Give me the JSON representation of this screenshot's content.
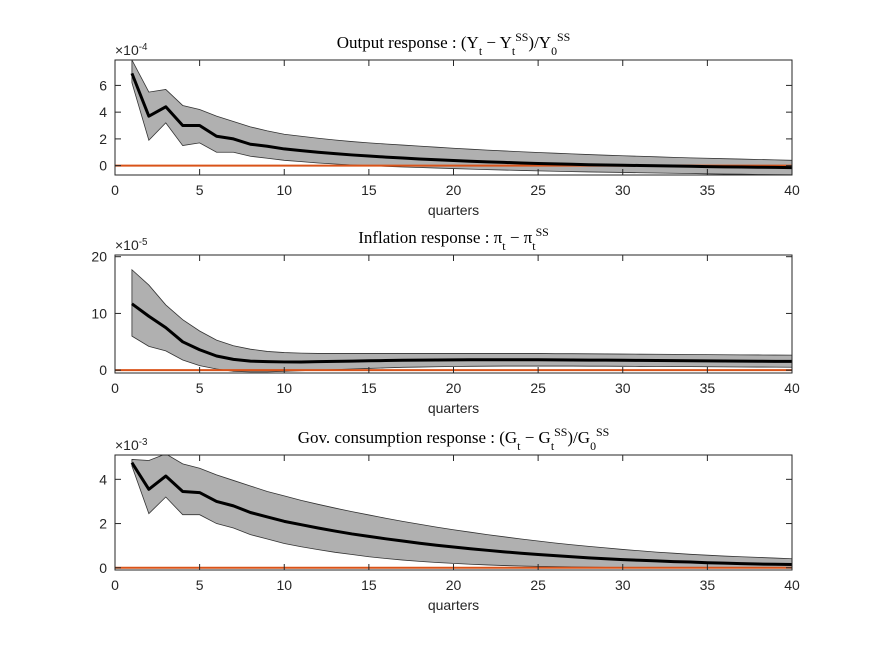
{
  "chart_data": [
    {
      "type": "line",
      "title": "Output response : (Y_{t} − Y_{t}^{SS})/Y_{0}^{SS}",
      "exponent_label": "×10^{-4}",
      "xlabel": "quarters",
      "x": [
        1,
        2,
        3,
        4,
        5,
        6,
        7,
        8,
        9,
        10,
        11,
        12,
        13,
        14,
        15,
        16,
        17,
        18,
        19,
        20,
        21,
        22,
        23,
        24,
        25,
        26,
        27,
        28,
        29,
        30,
        31,
        32,
        33,
        34,
        35,
        36,
        37,
        38,
        39,
        40
      ],
      "series": [
        {
          "color": "#000000",
          "values": [
            6.9,
            3.7,
            4.4,
            3.0,
            3.0,
            2.2,
            2.0,
            1.6,
            1.45,
            1.25,
            1.12,
            1.0,
            0.9,
            0.8,
            0.72,
            0.64,
            0.57,
            0.5,
            0.44,
            0.38,
            0.33,
            0.28,
            0.24,
            0.2,
            0.16,
            0.13,
            0.1,
            0.07,
            0.05,
            0.03,
            0.01,
            -0.01,
            -0.03,
            -0.05,
            -0.07,
            -0.09,
            -0.1,
            -0.12,
            -0.13,
            -0.15
          ]
        }
      ],
      "band": {
        "color": "#b0b0b0",
        "upper": [
          7.9,
          5.5,
          5.7,
          4.5,
          4.2,
          3.7,
          3.3,
          2.9,
          2.6,
          2.35,
          2.2,
          2.05,
          1.92,
          1.8,
          1.7,
          1.62,
          1.54,
          1.46,
          1.38,
          1.3,
          1.23,
          1.16,
          1.1,
          1.04,
          0.98,
          0.93,
          0.88,
          0.83,
          0.78,
          0.74,
          0.7,
          0.66,
          0.62,
          0.58,
          0.55,
          0.52,
          0.49,
          0.46,
          0.43,
          0.4
        ],
        "lower": [
          6.2,
          1.9,
          3.2,
          1.5,
          1.7,
          1.0,
          1.0,
          0.7,
          0.55,
          0.4,
          0.3,
          0.2,
          0.12,
          0.05,
          0,
          -0.05,
          -0.1,
          -0.14,
          -0.18,
          -0.22,
          -0.26,
          -0.3,
          -0.33,
          -0.36,
          -0.39,
          -0.42,
          -0.45,
          -0.47,
          -0.49,
          -0.51,
          -0.53,
          -0.55,
          -0.57,
          -0.59,
          -0.61,
          -0.63,
          -0.64,
          -0.66,
          -0.67,
          -0.68
        ]
      },
      "hline": {
        "value": 0,
        "color": "#d95319"
      },
      "xlim": [
        0,
        40
      ],
      "xticks": [
        0,
        5,
        10,
        15,
        20,
        25,
        30,
        35,
        40
      ],
      "ylim": [
        -0.7,
        7.9
      ],
      "yticks": [
        0,
        2,
        4,
        6
      ]
    },
    {
      "type": "line",
      "title": "Inflation response : π_{t} − π_{t}^{SS}",
      "exponent_label": "×10^{-5}",
      "xlabel": "quarters",
      "x": [
        1,
        2,
        3,
        4,
        5,
        6,
        7,
        8,
        9,
        10,
        11,
        12,
        13,
        14,
        15,
        16,
        17,
        18,
        19,
        20,
        21,
        22,
        23,
        24,
        25,
        26,
        27,
        28,
        29,
        30,
        31,
        32,
        33,
        34,
        35,
        36,
        37,
        38,
        39,
        40
      ],
      "series": [
        {
          "color": "#000000",
          "values": [
            11.7,
            9.5,
            7.5,
            5.0,
            3.6,
            2.5,
            1.9,
            1.6,
            1.5,
            1.45,
            1.45,
            1.5,
            1.55,
            1.6,
            1.65,
            1.7,
            1.75,
            1.78,
            1.8,
            1.82,
            1.83,
            1.84,
            1.84,
            1.84,
            1.83,
            1.82,
            1.8,
            1.78,
            1.76,
            1.74,
            1.72,
            1.7,
            1.68,
            1.66,
            1.64,
            1.62,
            1.6,
            1.58,
            1.56,
            1.55
          ]
        }
      ],
      "band": {
        "color": "#b0b0b0",
        "upper": [
          17.7,
          15.0,
          11.5,
          8.9,
          6.9,
          5.3,
          4.3,
          3.7,
          3.3,
          3.1,
          3.0,
          2.95,
          2.95,
          2.95,
          2.95,
          2.95,
          2.95,
          2.95,
          2.95,
          2.95,
          2.95,
          2.95,
          2.95,
          2.95,
          2.95,
          2.9,
          2.9,
          2.88,
          2.86,
          2.84,
          2.82,
          2.8,
          2.78,
          2.76,
          2.74,
          2.72,
          2.7,
          2.68,
          2.66,
          2.65
        ],
        "lower": [
          6.0,
          4.2,
          3.4,
          1.8,
          0.8,
          0.2,
          -0.2,
          -0.3,
          -0.3,
          -0.2,
          -0.1,
          0,
          0.1,
          0.2,
          0.3,
          0.4,
          0.5,
          0.55,
          0.6,
          0.65,
          0.68,
          0.7,
          0.72,
          0.72,
          0.72,
          0.72,
          0.72,
          0.7,
          0.7,
          0.68,
          0.66,
          0.65,
          0.63,
          0.62,
          0.6,
          0.58,
          0.56,
          0.55,
          0.53,
          0.52
        ]
      },
      "hline": {
        "value": 0,
        "color": "#d95319"
      },
      "xlim": [
        0,
        40
      ],
      "xticks": [
        0,
        5,
        10,
        15,
        20,
        25,
        30,
        35,
        40
      ],
      "ylim": [
        -0.5,
        20.3
      ],
      "yticks": [
        0,
        10,
        20
      ]
    },
    {
      "type": "line",
      "title": "Gov. consumption response : (G_{t} − G_{t}^{SS})/G_{0}^{SS}",
      "exponent_label": "×10^{-3}",
      "xlabel": "quarters",
      "x": [
        1,
        2,
        3,
        4,
        5,
        6,
        7,
        8,
        9,
        10,
        11,
        12,
        13,
        14,
        15,
        16,
        17,
        18,
        19,
        20,
        21,
        22,
        23,
        24,
        25,
        26,
        27,
        28,
        29,
        30,
        31,
        32,
        33,
        34,
        35,
        36,
        37,
        38,
        39,
        40
      ],
      "series": [
        {
          "color": "#000000",
          "values": [
            4.75,
            3.55,
            4.15,
            3.45,
            3.4,
            3.0,
            2.8,
            2.5,
            2.3,
            2.1,
            1.95,
            1.8,
            1.66,
            1.53,
            1.42,
            1.31,
            1.21,
            1.11,
            1.02,
            0.94,
            0.86,
            0.79,
            0.72,
            0.66,
            0.6,
            0.55,
            0.5,
            0.45,
            0.41,
            0.37,
            0.34,
            0.31,
            0.28,
            0.26,
            0.23,
            0.21,
            0.19,
            0.17,
            0.16,
            0.15
          ]
        }
      ],
      "band": {
        "color": "#b0b0b0",
        "upper": [
          4.9,
          4.85,
          5.15,
          4.7,
          4.5,
          4.2,
          3.95,
          3.7,
          3.45,
          3.25,
          3.05,
          2.87,
          2.7,
          2.54,
          2.39,
          2.24,
          2.1,
          1.97,
          1.84,
          1.72,
          1.61,
          1.5,
          1.4,
          1.3,
          1.21,
          1.12,
          1.04,
          0.97,
          0.9,
          0.83,
          0.77,
          0.71,
          0.66,
          0.61,
          0.57,
          0.53,
          0.5,
          0.47,
          0.44,
          0.41
        ],
        "lower": [
          4.6,
          2.45,
          3.2,
          2.4,
          2.4,
          2.0,
          1.8,
          1.5,
          1.3,
          1.1,
          0.95,
          0.82,
          0.7,
          0.6,
          0.5,
          0.42,
          0.35,
          0.29,
          0.24,
          0.2,
          0.16,
          0.13,
          0.1,
          0.08,
          0.06,
          0.05,
          0.04,
          0.03,
          0.02,
          0.01,
          0.01,
          0,
          0,
          0,
          0,
          0,
          0,
          0,
          0,
          0
        ]
      },
      "hline": {
        "value": 0,
        "color": "#d95319"
      },
      "xlim": [
        0,
        40
      ],
      "xticks": [
        0,
        5,
        10,
        15,
        20,
        25,
        30,
        35,
        40
      ],
      "ylim": [
        -0.1,
        5.1
      ],
      "yticks": [
        0,
        2,
        4
      ]
    }
  ]
}
